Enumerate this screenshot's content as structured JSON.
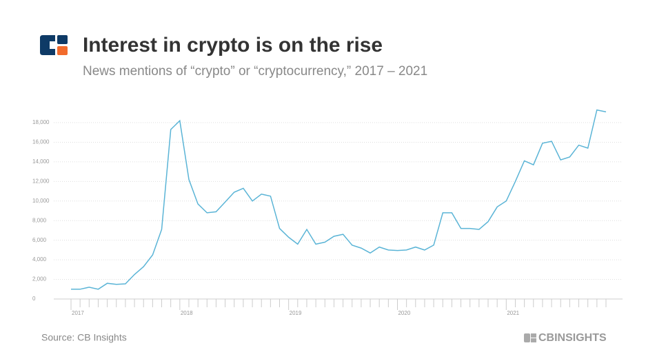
{
  "chart_data": {
    "type": "line",
    "title": "Interest in crypto is on the rise",
    "subtitle": "News mentions of “crypto” or “cryptocurrency,” 2017 – 2021",
    "source": "Source: CB Insights",
    "brand": "CBINSIGHTS",
    "categories": [
      "2017",
      null,
      null,
      null,
      null,
      null,
      null,
      null,
      null,
      null,
      null,
      null,
      "2018",
      null,
      null,
      null,
      null,
      null,
      null,
      null,
      null,
      null,
      null,
      null,
      "2019",
      null,
      null,
      null,
      null,
      null,
      null,
      null,
      null,
      null,
      null,
      null,
      "2020",
      null,
      null,
      null,
      null,
      null,
      null,
      null,
      null,
      null,
      null,
      null,
      "2021",
      null,
      null,
      null,
      null,
      null,
      null,
      null,
      null,
      null,
      null,
      null
    ],
    "series": [
      {
        "color": "#5ab4d6",
        "values": [
          1000,
          1000,
          1200,
          1000,
          1600,
          1500,
          1550,
          2500,
          3300,
          4500,
          7100,
          17300,
          18200,
          12200,
          9700,
          8800,
          8900,
          9900,
          10900,
          11300,
          10000,
          10700,
          10500,
          7200,
          6300,
          5600,
          7100,
          5600,
          5800,
          6400,
          6600,
          5500,
          5200,
          4700,
          5300,
          5000,
          4950,
          5000,
          5300,
          5000,
          5500,
          8800,
          8800,
          7200,
          7200,
          7100,
          7900,
          9400,
          10000,
          12000,
          14100,
          13700,
          15900,
          16100,
          14200,
          14500,
          15700,
          15400,
          19300,
          19100
        ]
      }
    ],
    "ylim": [
      0,
      20000
    ],
    "yticks": [
      0,
      {
        "value": 2000,
        "label": "2,000"
      },
      {
        "value": 4000,
        "label": "4,000"
      },
      {
        "value": 6000,
        "label": "6,000"
      },
      {
        "value": 8000,
        "label": "8,000"
      },
      {
        "value": 10000,
        "label": "10,000"
      },
      {
        "value": 12000,
        "label": "12,000"
      },
      {
        "value": 14000,
        "label": "14,000"
      },
      {
        "value": 16000,
        "label": "16,000"
      },
      {
        "value": 18000,
        "label": "18,000"
      }
    ],
    "grid": true
  }
}
